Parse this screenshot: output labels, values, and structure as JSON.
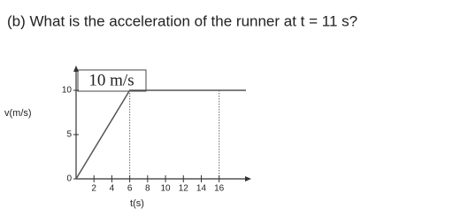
{
  "chart_data": {
    "type": "line",
    "title": "(b) What is the acceleration of the runner at t = 11 s?",
    "annotation": "10 m/s",
    "x_label": "t(s)",
    "y_label": "v(m/s)",
    "x": [
      0,
      6,
      19
    ],
    "values": [
      0,
      10,
      10
    ],
    "color": "#555555",
    "xlim": [
      0,
      19
    ],
    "ylim": [
      0,
      12
    ],
    "xticks": [
      2,
      4,
      6,
      8,
      10,
      12,
      14,
      16
    ],
    "yticks": [
      0,
      5,
      10
    ],
    "guides_x": [
      6,
      16
    ]
  }
}
